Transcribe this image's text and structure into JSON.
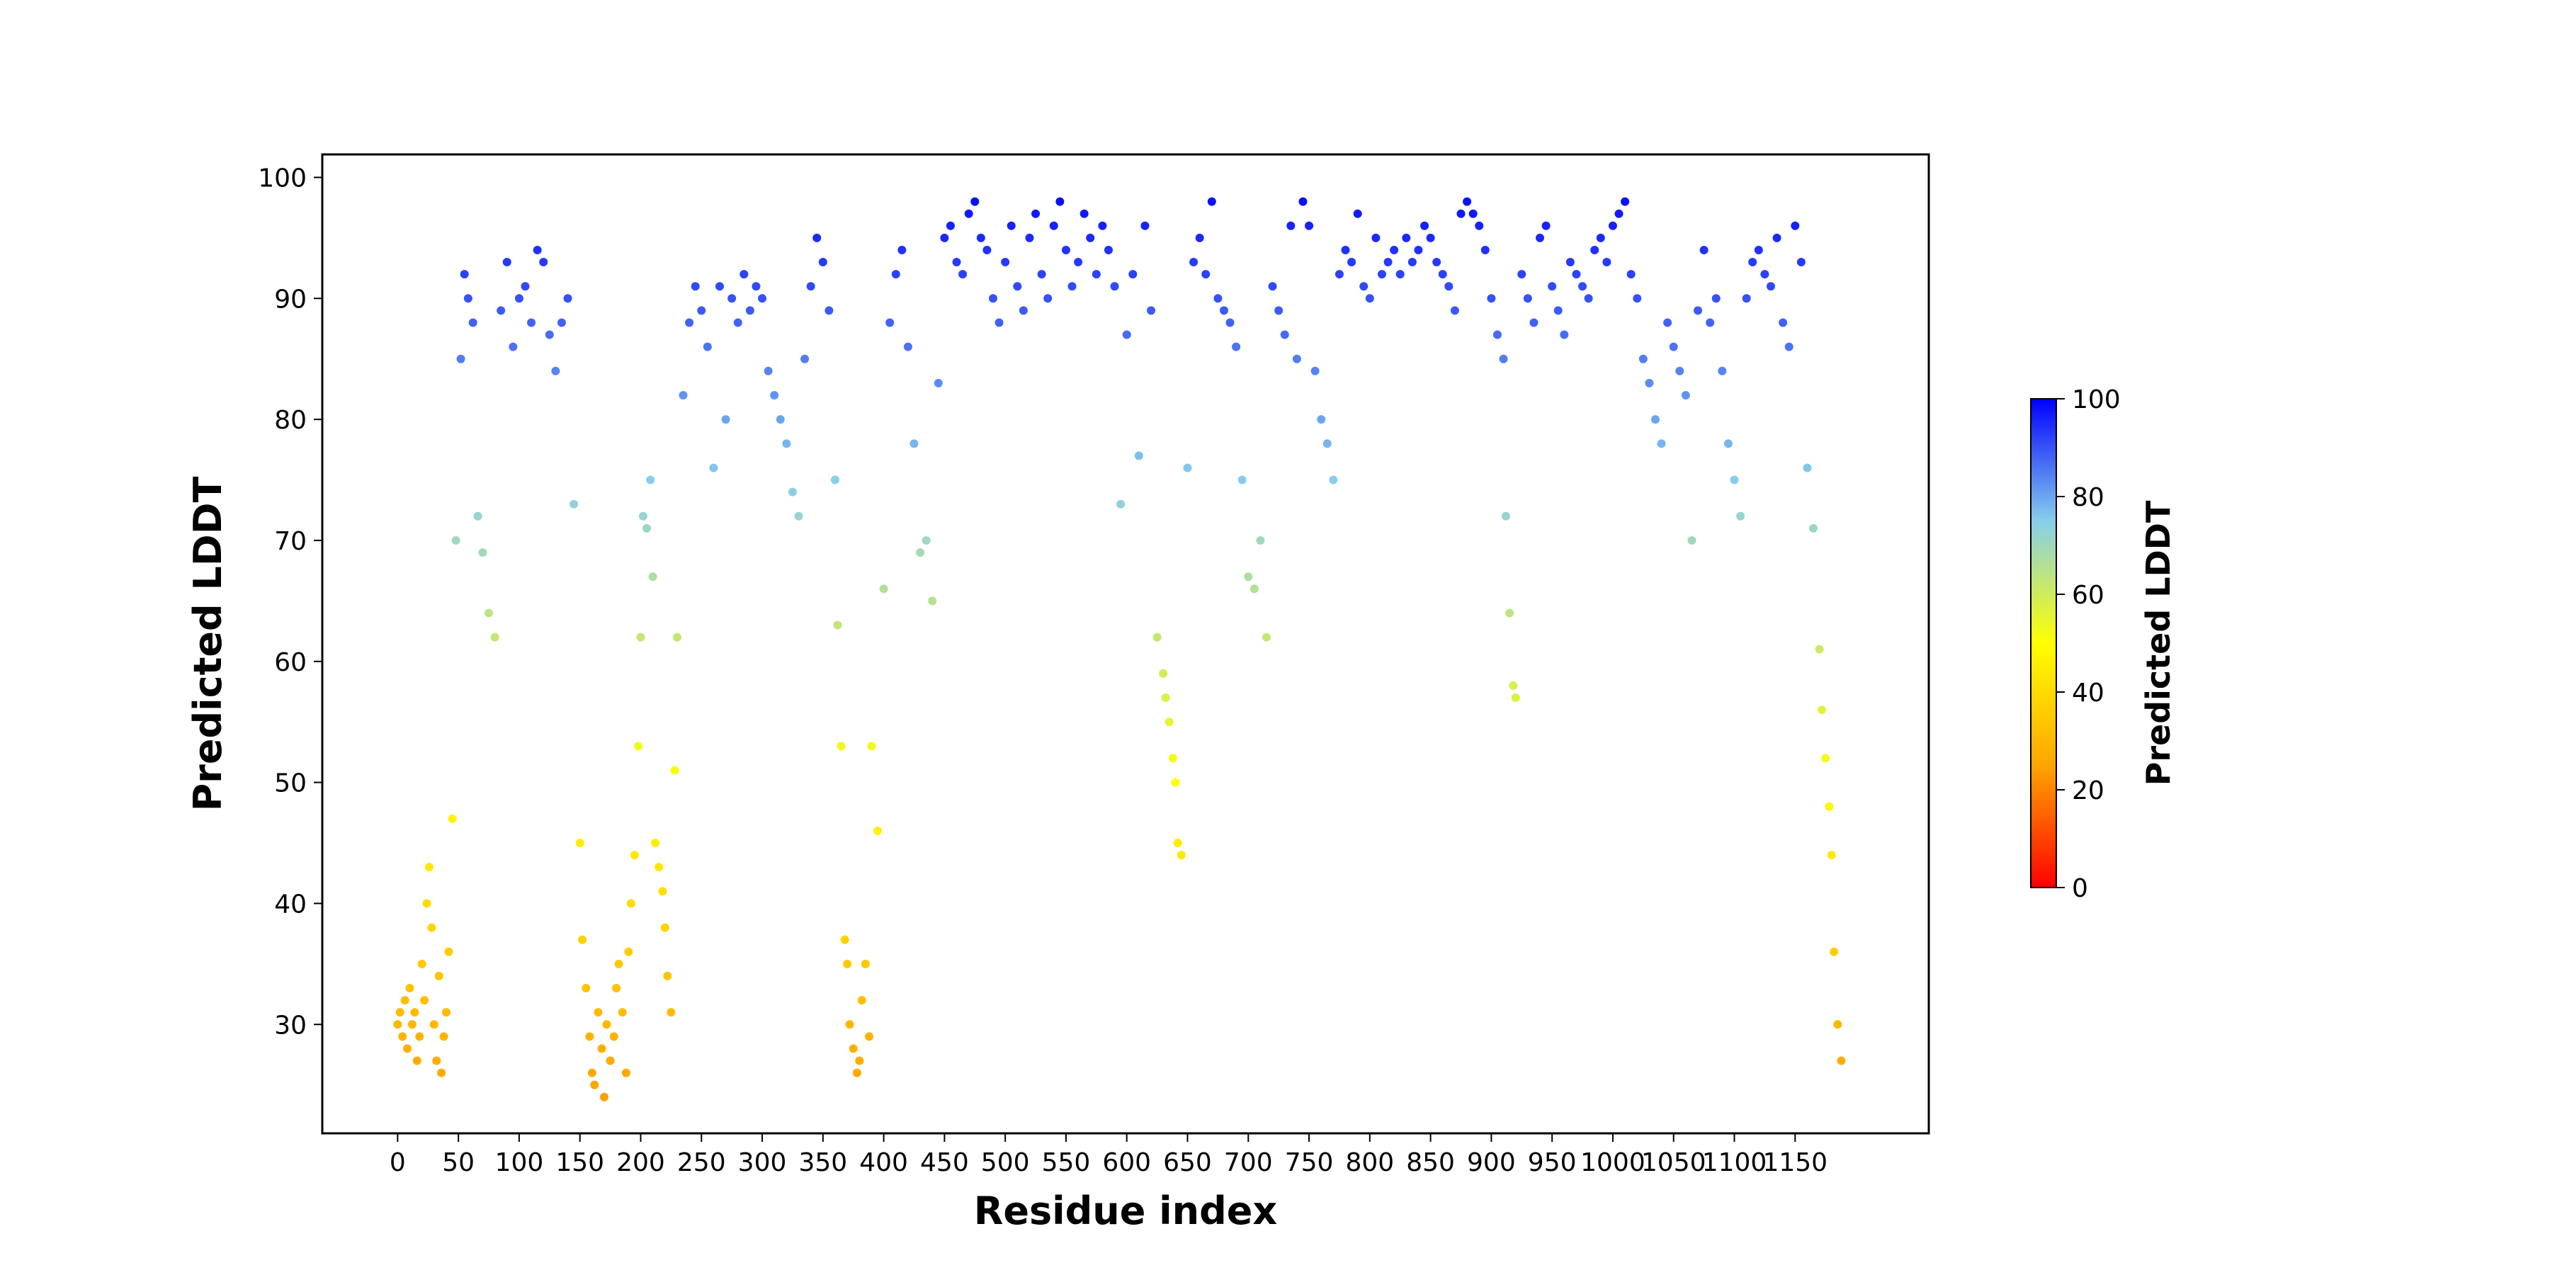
{
  "chart_data": {
    "type": "scatter",
    "xlabel": "Residue index",
    "ylabel": "Predicted LDDT",
    "xlim": [
      -62,
      1260
    ],
    "ylim": [
      21.0,
      101.9
    ],
    "xticks": [
      0,
      50,
      100,
      150,
      200,
      250,
      300,
      350,
      400,
      450,
      500,
      550,
      600,
      650,
      700,
      750,
      800,
      850,
      900,
      950,
      1000,
      1050,
      1100,
      1150
    ],
    "xtick_labels": [
      "0",
      "50",
      "100",
      "150",
      "200",
      "250",
      "300",
      "350",
      "400",
      "450",
      "500",
      "550",
      "600",
      "650",
      "700",
      "750",
      "800",
      "850",
      "900",
      "950",
      "1000",
      "1050",
      "1100",
      "1150"
    ],
    "yticks": [
      30,
      40,
      50,
      60,
      70,
      80,
      90,
      100
    ],
    "ytick_labels": [
      "30",
      "40",
      "50",
      "60",
      "70",
      "80",
      "90",
      "100"
    ],
    "colorbar": {
      "label": "Predicted LDDT",
      "range": [
        0,
        100
      ],
      "ticks": [
        0,
        20,
        40,
        60,
        80,
        100
      ],
      "tick_labels": [
        "0",
        "20",
        "40",
        "60",
        "80",
        "100"
      ],
      "colors": [
        "#ff0000",
        "#ffa500",
        "#ffff00",
        "#87ceeb",
        "#0000ff"
      ]
    },
    "series": [
      {
        "x": [
          0,
          2,
          4,
          6,
          8,
          10,
          12,
          14,
          16,
          18,
          20,
          22,
          24,
          26,
          28,
          30,
          32,
          34,
          36,
          38,
          40,
          42,
          45,
          48,
          52,
          55,
          58,
          62,
          66,
          70,
          75,
          80,
          85,
          90,
          95,
          100,
          105,
          110,
          115,
          120,
          125,
          130,
          135,
          140,
          145,
          150,
          152,
          155,
          158,
          160,
          162,
          165,
          168,
          170,
          172,
          175,
          178,
          180,
          182,
          185,
          188,
          190,
          192,
          195,
          198,
          200,
          202,
          205,
          208,
          210,
          212,
          215,
          218,
          220,
          222,
          225,
          228,
          230,
          235,
          240,
          245,
          250,
          255,
          260,
          265,
          270,
          275,
          280,
          285,
          290,
          295,
          300,
          305,
          310,
          315,
          320,
          325,
          330,
          335,
          340,
          345,
          350,
          355,
          360,
          362,
          365,
          368,
          370,
          372,
          375,
          378,
          380,
          382,
          385,
          388,
          390,
          395,
          400,
          405,
          410,
          415,
          420,
          425,
          430,
          435,
          440,
          445,
          450,
          455,
          460,
          465,
          470,
          475,
          480,
          485,
          490,
          495,
          500,
          505,
          510,
          515,
          520,
          525,
          530,
          535,
          540,
          545,
          550,
          555,
          560,
          565,
          570,
          575,
          580,
          585,
          590,
          595,
          600,
          605,
          610,
          615,
          620,
          625,
          630,
          632,
          635,
          638,
          640,
          642,
          645,
          650,
          655,
          660,
          665,
          670,
          675,
          680,
          685,
          690,
          695,
          700,
          705,
          710,
          715,
          720,
          725,
          730,
          735,
          740,
          745,
          750,
          755,
          760,
          765,
          770,
          775,
          780,
          785,
          790,
          795,
          800,
          805,
          810,
          815,
          820,
          825,
          830,
          835,
          840,
          845,
          850,
          855,
          860,
          865,
          870,
          875,
          880,
          885,
          890,
          895,
          900,
          905,
          910,
          912,
          915,
          918,
          920,
          925,
          930,
          935,
          940,
          945,
          950,
          955,
          960,
          965,
          970,
          975,
          980,
          985,
          990,
          995,
          1000,
          1005,
          1010,
          1015,
          1020,
          1025,
          1030,
          1035,
          1040,
          1045,
          1050,
          1055,
          1060,
          1065,
          1070,
          1075,
          1080,
          1085,
          1090,
          1095,
          1100,
          1105,
          1110,
          1115,
          1120,
          1125,
          1130,
          1135,
          1140,
          1145,
          1150,
          1155,
          1160,
          1165,
          1170,
          1172,
          1175,
          1178,
          1180,
          1182,
          1185,
          1188
        ],
        "y": [
          30,
          31,
          29,
          32,
          28,
          33,
          30,
          31,
          27,
          29,
          35,
          32,
          40,
          43,
          38,
          30,
          27,
          34,
          26,
          29,
          31,
          36,
          47,
          70,
          85,
          92,
          90,
          88,
          72,
          69,
          64,
          62,
          89,
          93,
          86,
          90,
          91,
          88,
          94,
          93,
          87,
          84,
          88,
          90,
          73,
          45,
          37,
          33,
          29,
          26,
          25,
          31,
          28,
          24,
          30,
          27,
          29,
          33,
          35,
          31,
          26,
          36,
          40,
          44,
          53,
          62,
          72,
          71,
          75,
          67,
          45,
          43,
          41,
          38,
          34,
          31,
          51,
          62,
          82,
          88,
          91,
          89,
          86,
          76,
          91,
          80,
          90,
          88,
          92,
          89,
          91,
          90,
          84,
          82,
          80,
          78,
          74,
          72,
          85,
          91,
          95,
          93,
          89,
          75,
          63,
          53,
          37,
          35,
          30,
          28,
          26,
          27,
          32,
          35,
          29,
          53,
          46,
          66,
          88,
          92,
          94,
          86,
          78,
          69,
          70,
          65,
          83,
          95,
          96,
          93,
          92,
          97,
          98,
          95,
          94,
          90,
          88,
          93,
          96,
          91,
          89,
          95,
          97,
          92,
          90,
          96,
          98,
          94,
          91,
          93,
          97,
          95,
          92,
          96,
          94,
          91,
          73,
          87,
          92,
          77,
          96,
          89,
          62,
          59,
          57,
          55,
          52,
          50,
          45,
          44,
          76,
          93,
          95,
          92,
          98,
          90,
          89,
          88,
          86,
          75,
          67,
          66,
          70,
          62,
          91,
          89,
          87,
          96,
          85,
          98,
          96,
          84,
          80,
          78,
          75,
          92,
          94,
          93,
          97,
          91,
          90,
          95,
          92,
          93,
          94,
          92,
          95,
          93,
          94,
          96,
          95,
          93,
          92,
          91,
          89,
          97,
          98,
          97,
          96,
          94,
          90,
          87,
          85,
          72,
          64,
          58,
          57,
          92,
          90,
          88,
          95,
          96,
          91,
          89,
          87,
          93,
          92,
          91,
          90,
          94,
          95,
          93,
          96,
          97,
          98,
          92,
          90,
          85,
          83,
          80,
          78,
          88,
          86,
          84,
          82,
          70,
          89,
          94,
          88,
          90,
          84,
          78,
          75,
          72,
          90,
          93,
          94,
          92,
          91,
          95,
          88,
          86,
          96,
          93,
          76,
          71,
          61,
          56,
          52,
          48,
          44,
          36,
          30,
          27
        ]
      }
    ]
  }
}
